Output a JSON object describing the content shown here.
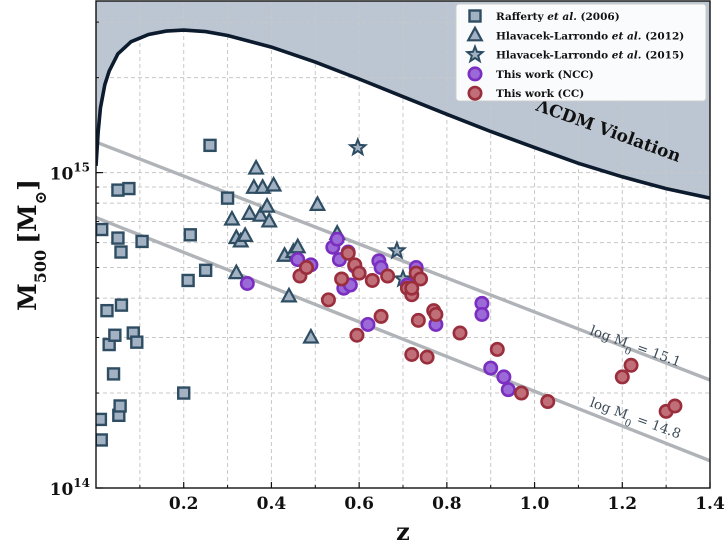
{
  "chart_data": {
    "type": "scatter",
    "xlabel": "z",
    "ylabel": {
      "main": "M",
      "sub": "500",
      "unit": "[M",
      "unit_sub": "⊙",
      "close": "]"
    },
    "xlim": [
      0.0,
      1.4
    ],
    "ylim": [
      100000000000000.0,
      3500000000000000.0
    ],
    "yscale": "log",
    "grid": true,
    "x_ticks": [
      0.2,
      0.4,
      0.6,
      0.8,
      1.0,
      1.2,
      1.4
    ],
    "x_tick_labels": [
      "0.2",
      "0.4",
      "0.6",
      "0.8",
      "1.0",
      "1.2",
      "1.4"
    ],
    "y_ticks": [
      {
        "value": 100000000000000.0,
        "base": "10",
        "exp": "14"
      },
      {
        "value": 1000000000000000.0,
        "base": "10",
        "exp": "15"
      }
    ],
    "legend_position": "top-right",
    "series": [
      {
        "name": "Rafferty et al. (2006)",
        "legend": {
          "pre": "Rafferty ",
          "em": "et al.",
          "post": " (2006)"
        },
        "marker": "square",
        "fill": "#a2b2c2",
        "stroke": "#2e4d63",
        "points": [
          [
            0.01,
            165000000000000.0
          ],
          [
            0.012,
            142000000000000.0
          ],
          [
            0.013,
            660000000000000.0
          ],
          [
            0.025,
            365000000000000.0
          ],
          [
            0.03,
            285000000000000.0
          ],
          [
            0.04,
            230000000000000.0
          ],
          [
            0.043,
            305000000000000.0
          ],
          [
            0.05,
            880000000000000.0
          ],
          [
            0.05,
            620000000000000.0
          ],
          [
            0.052,
            170000000000000.0
          ],
          [
            0.055,
            182000000000000.0
          ],
          [
            0.057,
            560000000000000.0
          ],
          [
            0.058,
            380000000000000.0
          ],
          [
            0.075,
            890000000000000.0
          ],
          [
            0.085,
            310000000000000.0
          ],
          [
            0.093,
            290000000000000.0
          ],
          [
            0.105,
            605000000000000.0
          ],
          [
            0.2,
            200000000000000.0
          ],
          [
            0.21,
            455000000000000.0
          ],
          [
            0.215,
            635000000000000.0
          ],
          [
            0.25,
            490000000000000.0
          ],
          [
            0.26,
            1220000000000000.0
          ],
          [
            0.3,
            830000000000000.0
          ]
        ]
      },
      {
        "name": "Hlavacek-Larrondo et al. (2012)",
        "legend": {
          "pre": "Hlavacek-Larrondo ",
          "em": "et al.",
          "post": " (2012)"
        },
        "marker": "triangle",
        "fill": "#a2b2c2",
        "stroke": "#2e4d63",
        "points": [
          [
            0.31,
            710000000000000.0
          ],
          [
            0.32,
            480000000000000.0
          ],
          [
            0.32,
            620000000000000.0
          ],
          [
            0.33,
            605000000000000.0
          ],
          [
            0.34,
            630000000000000.0
          ],
          [
            0.35,
            740000000000000.0
          ],
          [
            0.36,
            895000000000000.0
          ],
          [
            0.365,
            1030000000000000.0
          ],
          [
            0.375,
            730000000000000.0
          ],
          [
            0.38,
            895000000000000.0
          ],
          [
            0.39,
            780000000000000.0
          ],
          [
            0.395,
            700000000000000.0
          ],
          [
            0.405,
            910000000000000.0
          ],
          [
            0.43,
            545000000000000.0
          ],
          [
            0.44,
            405000000000000.0
          ],
          [
            0.45,
            560000000000000.0
          ],
          [
            0.46,
            580000000000000.0
          ],
          [
            0.49,
            300000000000000.0
          ],
          [
            0.505,
            790000000000000.0
          ],
          [
            0.55,
            640000000000000.0
          ]
        ]
      },
      {
        "name": "Hlavacek-Larrondo et al. (2015)",
        "legend": {
          "pre": "Hlavacek-Larrondo ",
          "em": "et al.",
          "post": " (2015)"
        },
        "marker": "star",
        "fill": "#a2b2c2",
        "stroke": "#2e4d63",
        "points": [
          [
            0.597,
            1200000000000000.0
          ],
          [
            0.686,
            565000000000000.0
          ],
          [
            0.7,
            460000000000000.0
          ]
        ]
      },
      {
        "name": "This work (NCC)",
        "legend": {
          "pre": "This work (NCC)",
          "em": "",
          "post": ""
        },
        "marker": "circle",
        "fill": "#9b6ad8",
        "stroke": "#7a2fc0",
        "points": [
          [
            0.345,
            445000000000000.0
          ],
          [
            0.46,
            530000000000000.0
          ],
          [
            0.49,
            510000000000000.0
          ],
          [
            0.54,
            580000000000000.0
          ],
          [
            0.55,
            615000000000000.0
          ],
          [
            0.555,
            530000000000000.0
          ],
          [
            0.565,
            430000000000000.0
          ],
          [
            0.575,
            560000000000000.0
          ],
          [
            0.58,
            440000000000000.0
          ],
          [
            0.59,
            505000000000000.0
          ],
          [
            0.62,
            330000000000000.0
          ],
          [
            0.645,
            525000000000000.0
          ],
          [
            0.65,
            500000000000000.0
          ],
          [
            0.71,
            440000000000000.0
          ],
          [
            0.73,
            500000000000000.0
          ],
          [
            0.775,
            330000000000000.0
          ],
          [
            0.88,
            385000000000000.0
          ],
          [
            0.88,
            355000000000000.0
          ],
          [
            0.9,
            240000000000000.0
          ],
          [
            0.93,
            225000000000000.0
          ],
          [
            0.94,
            205000000000000.0
          ]
        ]
      },
      {
        "name": "This work (CC)",
        "legend": {
          "pre": "This work (CC)",
          "em": "",
          "post": ""
        },
        "marker": "circle",
        "fill": "#c06e78",
        "stroke": "#9a2e3c",
        "points": [
          [
            0.465,
            470000000000000.0
          ],
          [
            0.48,
            500000000000000.0
          ],
          [
            0.53,
            395000000000000.0
          ],
          [
            0.56,
            460000000000000.0
          ],
          [
            0.575,
            555000000000000.0
          ],
          [
            0.59,
            510000000000000.0
          ],
          [
            0.595,
            305000000000000.0
          ],
          [
            0.6,
            480000000000000.0
          ],
          [
            0.63,
            455000000000000.0
          ],
          [
            0.65,
            350000000000000.0
          ],
          [
            0.665,
            470000000000000.0
          ],
          [
            0.71,
            430000000000000.0
          ],
          [
            0.72,
            265000000000000.0
          ],
          [
            0.72,
            410000000000000.0
          ],
          [
            0.72,
            430000000000000.0
          ],
          [
            0.73,
            480000000000000.0
          ],
          [
            0.735,
            340000000000000.0
          ],
          [
            0.74,
            460000000000000.0
          ],
          [
            0.755,
            260000000000000.0
          ],
          [
            0.77,
            365000000000000.0
          ],
          [
            0.775,
            355000000000000.0
          ],
          [
            0.83,
            310000000000000.0
          ],
          [
            0.915,
            275000000000000.0
          ],
          [
            0.97,
            200000000000000.0
          ],
          [
            1.03,
            188000000000000.0
          ],
          [
            1.2,
            225000000000000.0
          ],
          [
            1.22,
            245000000000000.0
          ],
          [
            1.3,
            175000000000000.0
          ],
          [
            1.32,
            182000000000000.0
          ]
        ]
      }
    ],
    "lines": [
      {
        "name": "log M0 = 15.1",
        "label": {
          "base": "log M",
          "sub": "0",
          "rest": " = 15.1"
        },
        "y0": 1250000000000000.0,
        "y1": 220000000000000.0
      },
      {
        "name": "log M0 = 14.8",
        "label": {
          "base": "log M",
          "sub": "0",
          "rest": " = 14.8"
        },
        "y0": 720000000000000.0,
        "y1": 122000000000000.0
      }
    ],
    "violation_curve": {
      "label": "ΛCDM Violation",
      "points": [
        [
          0.0,
          1050000000000000.0
        ],
        [
          0.005,
          1350000000000000.0
        ],
        [
          0.01,
          1600000000000000.0
        ],
        [
          0.02,
          1900000000000000.0
        ],
        [
          0.03,
          2100000000000000.0
        ],
        [
          0.05,
          2380000000000000.0
        ],
        [
          0.08,
          2600000000000000.0
        ],
        [
          0.12,
          2740000000000000.0
        ],
        [
          0.16,
          2810000000000000.0
        ],
        [
          0.2,
          2830000000000000.0
        ],
        [
          0.25,
          2800000000000000.0
        ],
        [
          0.3,
          2720000000000000.0
        ],
        [
          0.4,
          2500000000000000.0
        ],
        [
          0.5,
          2240000000000000.0
        ],
        [
          0.6,
          1980000000000000.0
        ],
        [
          0.7,
          1740000000000000.0
        ],
        [
          0.8,
          1530000000000000.0
        ],
        [
          0.9,
          1350000000000000.0
        ],
        [
          1.0,
          1200000000000000.0
        ],
        [
          1.1,
          1070000000000000.0
        ],
        [
          1.2,
          970000000000000.0
        ],
        [
          1.3,
          890000000000000.0
        ],
        [
          1.4,
          830000000000000.0
        ]
      ],
      "shade_color": "#bcc6d2",
      "line_color": "#0d1b2e"
    },
    "colors": {
      "grid": "#c8c8c8",
      "lines": "#b0b4b8"
    }
  }
}
